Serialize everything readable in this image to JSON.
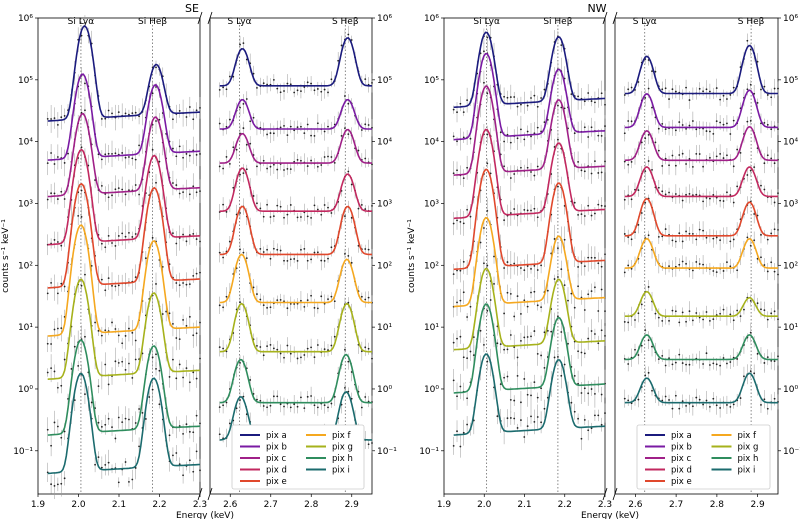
{
  "chart_data": {
    "type": "line",
    "ylabel": "counts s⁻¹ keV⁻¹",
    "xlabel": "Energy (keV)",
    "yscale": "log",
    "ylim": [
      0.02,
      1000000
    ],
    "y_ticks": [
      {
        "value": 1000000,
        "label": "10⁶"
      },
      {
        "value": 100000,
        "label": "10⁵"
      },
      {
        "value": 10000,
        "label": "10⁴"
      },
      {
        "value": 1000,
        "label": "10³"
      },
      {
        "value": 100,
        "label": "10²"
      },
      {
        "value": 10,
        "label": "10¹"
      },
      {
        "value": 1,
        "label": "10⁰"
      },
      {
        "value": 0.1,
        "label": "10⁻¹"
      }
    ],
    "segments": [
      {
        "name": "si",
        "xlim": [
          1.9,
          2.3
        ],
        "ticks": [
          {
            "value": 1.9,
            "label": "1.9"
          },
          {
            "value": 2.0,
            "label": "2.0"
          },
          {
            "value": 2.1,
            "label": "2.1"
          },
          {
            "value": 2.2,
            "label": "2.2"
          },
          {
            "value": 2.3,
            "label": "2.3"
          }
        ]
      },
      {
        "name": "s",
        "xlim": [
          2.55,
          2.95
        ],
        "ticks": [
          {
            "value": 2.6,
            "label": "2.6"
          },
          {
            "value": 2.7,
            "label": "2.7"
          },
          {
            "value": 2.8,
            "label": "2.8"
          },
          {
            "value": 2.9,
            "label": "2.9"
          }
        ]
      }
    ],
    "line_annotations": [
      {
        "label": "Si Lyα",
        "energy": 2.006,
        "segment": "si"
      },
      {
        "label": "Si Heβ",
        "energy": 2.183,
        "segment": "si"
      },
      {
        "label": "S Lyα",
        "energy": 2.623,
        "segment": "s"
      },
      {
        "label": "S Heβ",
        "energy": 2.884,
        "segment": "s"
      }
    ],
    "panels": [
      {
        "title": "SE",
        "series": [
          {
            "name": "pix a",
            "color": "#1b1b7e",
            "si_cont": 30000,
            "si_peaks": [
              [
                2.015,
                25
              ],
              [
                2.192,
                6
              ]
            ],
            "s_cont": 80000,
            "s_peaks": [
              [
                2.63,
                4
              ],
              [
                2.89,
                6
              ]
            ]
          },
          {
            "name": "pix b",
            "color": "#7a1aa3",
            "si_cont": 7000,
            "si_peaks": [
              [
                2.01,
                18
              ],
              [
                2.19,
                12
              ]
            ],
            "s_cont": 16000,
            "s_peaks": [
              [
                2.63,
                3
              ],
              [
                2.89,
                3
              ]
            ]
          },
          {
            "name": "pix c",
            "color": "#a02088",
            "si_cont": 1800,
            "si_peaks": [
              [
                2.01,
                16
              ],
              [
                2.19,
                14
              ]
            ],
            "s_cont": 4500,
            "s_peaks": [
              [
                2.63,
                3
              ],
              [
                2.89,
                3.5
              ]
            ]
          },
          {
            "name": "pix d",
            "color": "#c2285f",
            "si_cont": 300,
            "si_peaks": [
              [
                2.007,
                25
              ],
              [
                2.187,
                20
              ]
            ],
            "s_cont": 750,
            "s_peaks": [
              [
                2.63,
                5
              ],
              [
                2.89,
                4
              ]
            ]
          },
          {
            "name": "pix e",
            "color": "#e0482c",
            "si_cont": 60,
            "si_peaks": [
              [
                2.007,
                35
              ],
              [
                2.187,
                30
              ]
            ],
            "s_cont": 150,
            "s_peaks": [
              [
                2.63,
                6
              ],
              [
                2.89,
                6
              ]
            ]
          },
          {
            "name": "pix f",
            "color": "#f5a81f",
            "si_cont": 10,
            "si_peaks": [
              [
                2.006,
                45
              ],
              [
                2.186,
                25
              ]
            ],
            "s_cont": 25,
            "s_peaks": [
              [
                2.628,
                6
              ],
              [
                2.888,
                5
              ]
            ]
          },
          {
            "name": "pix g",
            "color": "#a6b21b",
            "si_cont": 2,
            "si_peaks": [
              [
                2.006,
                30
              ],
              [
                2.186,
                18
              ]
            ],
            "s_cont": 4,
            "s_peaks": [
              [
                2.628,
                6
              ],
              [
                2.888,
                6
              ]
            ]
          },
          {
            "name": "pix h",
            "color": "#2f8d5e",
            "si_cont": 0.25,
            "si_peaks": [
              [
                2.006,
                25
              ],
              [
                2.186,
                20
              ]
            ],
            "s_cont": 0.6,
            "s_peaks": [
              [
                2.626,
                5
              ],
              [
                2.886,
                6
              ]
            ]
          },
          {
            "name": "pix i",
            "color": "#1b6b6e",
            "si_cont": 0.06,
            "si_peaks": [
              [
                2.006,
                30
              ],
              [
                2.186,
                25
              ]
            ],
            "s_cont": 0.15,
            "s_peaks": [
              [
                2.626,
                5
              ],
              [
                2.886,
                6
              ]
            ]
          }
        ]
      },
      {
        "title": "NW",
        "series": [
          {
            "name": "pix a",
            "color": "#1b1b7e",
            "si_cont": 50000,
            "si_peaks": [
              [
                2.005,
                12
              ],
              [
                2.185,
                10
              ]
            ],
            "s_cont": 60000,
            "s_peaks": [
              [
                2.628,
                4
              ],
              [
                2.88,
                6
              ]
            ]
          },
          {
            "name": "pix b",
            "color": "#7a1aa3",
            "si_cont": 15000,
            "si_peaks": [
              [
                2.005,
                18
              ],
              [
                2.185,
                10
              ]
            ],
            "s_cont": 17000,
            "s_peaks": [
              [
                2.628,
                3.5
              ],
              [
                2.88,
                4
              ]
            ]
          },
          {
            "name": "pix c",
            "color": "#a02088",
            "si_cont": 4000,
            "si_peaks": [
              [
                2.005,
                20
              ],
              [
                2.185,
                12
              ]
            ],
            "s_cont": 5000,
            "s_peaks": [
              [
                2.628,
                3
              ],
              [
                2.88,
                3.5
              ]
            ]
          },
          {
            "name": "pix d",
            "color": "#c2285f",
            "si_cont": 800,
            "si_peaks": [
              [
                2.005,
                20
              ],
              [
                2.185,
                12
              ]
            ],
            "s_cont": 1300,
            "s_peaks": [
              [
                2.628,
                3
              ],
              [
                2.88,
                3
              ]
            ]
          },
          {
            "name": "pix e",
            "color": "#e0482c",
            "si_cont": 120,
            "si_peaks": [
              [
                2.005,
                30
              ],
              [
                2.185,
                18
              ]
            ],
            "s_cont": 300,
            "s_peaks": [
              [
                2.628,
                4
              ],
              [
                2.88,
                3.5
              ]
            ]
          },
          {
            "name": "pix f",
            "color": "#f5a81f",
            "si_cont": 30,
            "si_peaks": [
              [
                2.005,
                20
              ],
              [
                2.185,
                10
              ]
            ],
            "s_cont": 90,
            "s_peaks": [
              [
                2.628,
                3
              ],
              [
                2.88,
                3
              ]
            ]
          },
          {
            "name": "pix g",
            "color": "#a6b21b",
            "si_cont": 6,
            "si_peaks": [
              [
                2.005,
                15
              ],
              [
                2.185,
                10
              ]
            ],
            "s_cont": 15,
            "s_peaks": [
              [
                2.628,
                2.5
              ],
              [
                2.88,
                2
              ]
            ]
          },
          {
            "name": "pix h",
            "color": "#2f8d5e",
            "si_cont": 1.2,
            "si_peaks": [
              [
                2.005,
                20
              ],
              [
                2.185,
                12
              ]
            ],
            "s_cont": 3,
            "s_peaks": [
              [
                2.628,
                2.5
              ],
              [
                2.88,
                2.5
              ]
            ]
          },
          {
            "name": "pix i",
            "color": "#1b6b6e",
            "si_cont": 0.25,
            "si_peaks": [
              [
                2.005,
                15
              ],
              [
                2.185,
                12
              ]
            ],
            "s_cont": 0.6,
            "s_peaks": [
              [
                2.628,
                2.5
              ],
              [
                2.88,
                3
              ]
            ]
          }
        ]
      }
    ]
  }
}
